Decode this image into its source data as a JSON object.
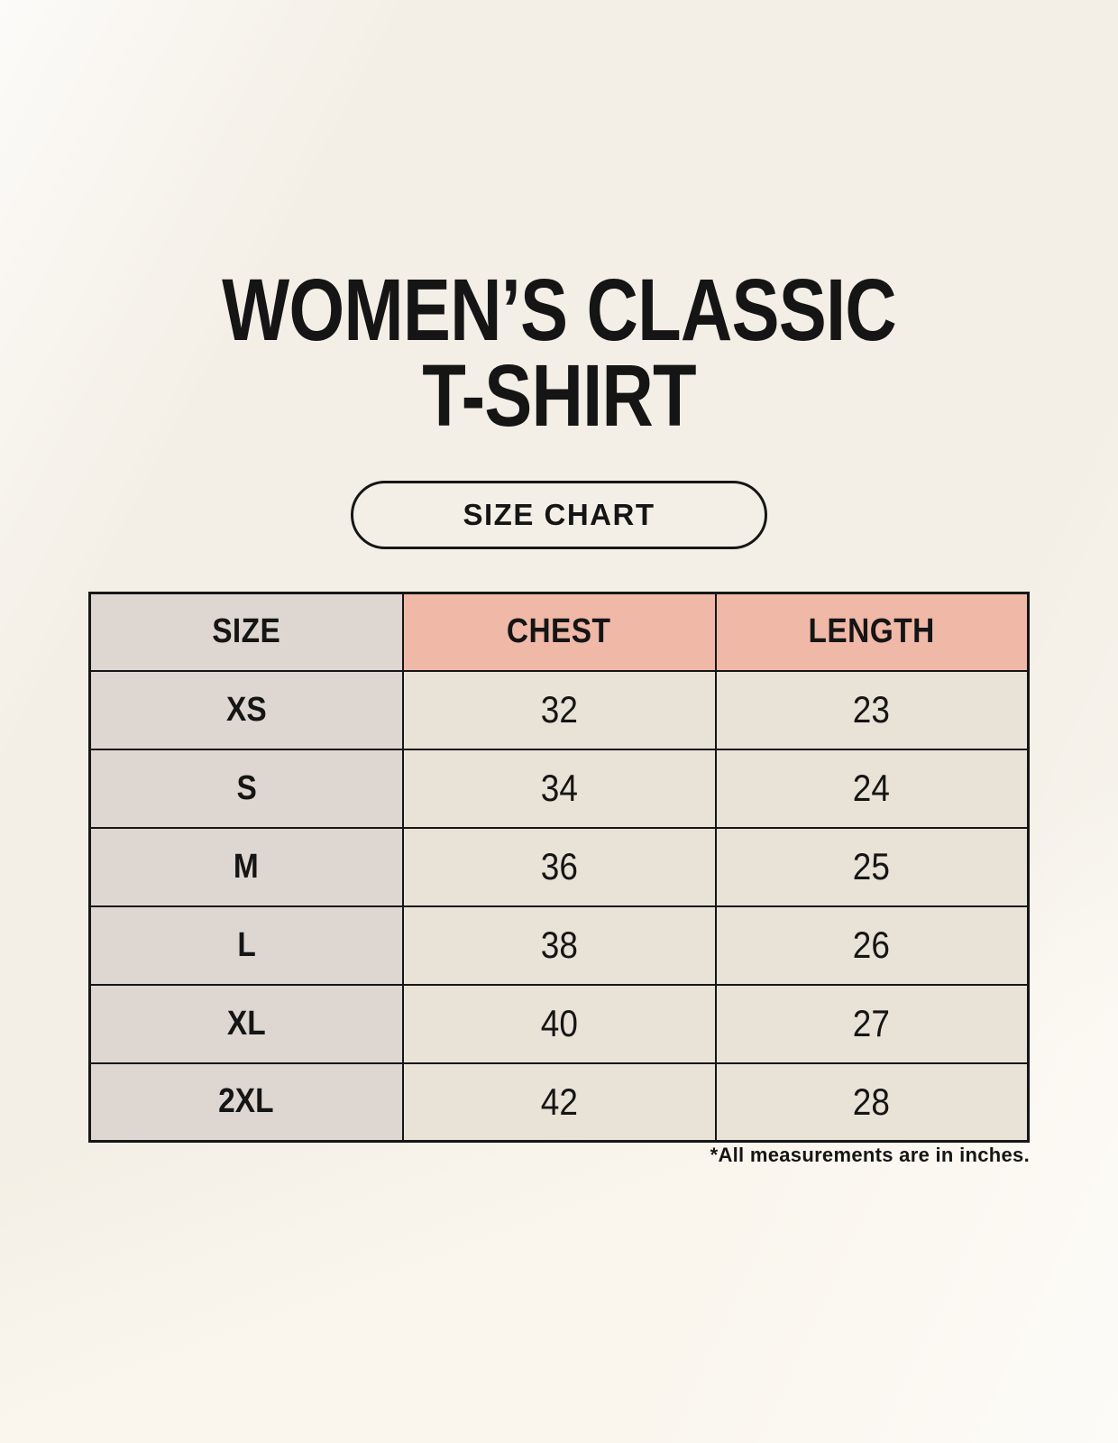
{
  "page": {
    "background": "#faf6ee"
  },
  "header": {
    "title_line1": "WOMEN’S CLASSIC",
    "title_line2": "T-SHIRT",
    "size_chart_button_label": "SIZE CHART"
  },
  "size_table": {
    "columns": [
      "SIZE",
      "CHEST",
      "LENGTH"
    ],
    "rows": [
      {
        "size": "XS",
        "chest": "32",
        "length": "23"
      },
      {
        "size": "S",
        "chest": "34",
        "length": "24"
      },
      {
        "size": "M",
        "chest": "36",
        "length": "25"
      },
      {
        "size": "L",
        "chest": "38",
        "length": "26"
      },
      {
        "size": "XL",
        "chest": "40",
        "length": "27"
      },
      {
        "size": "2XL",
        "chest": "42",
        "length": "28"
      }
    ],
    "colors": {
      "size_column_bg": "#ded7d1",
      "header_accent_bg": "#f0b8a7",
      "cell_bg": "#e9e2d7",
      "table_border": "#161616",
      "page_bg": "#faf6ee"
    }
  },
  "footnote": "*All measurements are in inches.",
  "chart_data": {
    "type": "table",
    "title": "WOMEN’S CLASSIC T-SHIRT — SIZE CHART",
    "columns": [
      "SIZE",
      "CHEST",
      "LENGTH"
    ],
    "rows": [
      [
        "XS",
        32,
        23
      ],
      [
        "S",
        34,
        24
      ],
      [
        "M",
        36,
        25
      ],
      [
        "L",
        38,
        26
      ],
      [
        "XL",
        40,
        27
      ],
      [
        "2XL",
        42,
        28
      ]
    ],
    "note": "*All measurements are in inches."
  }
}
